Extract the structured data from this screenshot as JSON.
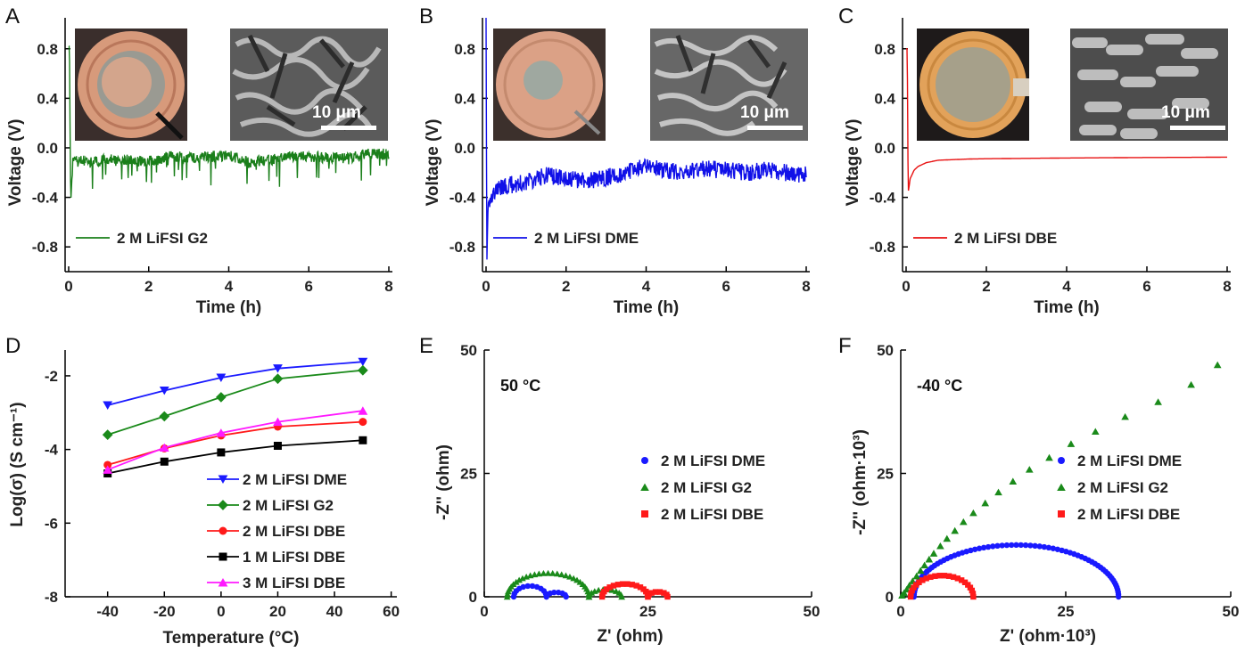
{
  "chart_data": [
    {
      "panel": "A",
      "type": "line",
      "xlabel": "Time (h)",
      "ylabel": "Voltage (V)",
      "xlim": [
        0,
        8
      ],
      "ylim": [
        -1.0,
        1.05
      ],
      "xticks": [
        "0",
        "2",
        "4",
        "6",
        "8"
      ],
      "yticks": [
        "0.8",
        "0.4",
        "0.0",
        "-0.4",
        "-0.8"
      ],
      "legend_placement": "bottom-left",
      "insets": [
        "photo",
        "micrograph"
      ],
      "scalebar_label": "10 μm",
      "series": [
        {
          "name": "2 M LiFSI G2",
          "color": "#1a7f1a",
          "x": [
            0,
            0.02,
            0.05,
            0.1,
            0.3,
            0.6,
            1,
            1.5,
            2,
            2.5,
            3,
            3.5,
            4,
            4.5,
            5,
            5.5,
            6,
            6.5,
            7,
            7.5,
            8
          ],
          "y": [
            0.82,
            0.82,
            -0.45,
            -0.12,
            -0.1,
            -0.12,
            -0.09,
            -0.1,
            -0.11,
            -0.07,
            -0.08,
            -0.07,
            -0.06,
            -0.12,
            -0.1,
            -0.07,
            -0.07,
            -0.08,
            -0.08,
            -0.05,
            -0.05
          ]
        }
      ]
    },
    {
      "panel": "B",
      "type": "line",
      "xlabel": "Time (h)",
      "ylabel": "Voltage (V)",
      "xlim": [
        0,
        8
      ],
      "ylim": [
        -1.0,
        1.05
      ],
      "xticks": [
        "0",
        "2",
        "4",
        "6",
        "8"
      ],
      "yticks": [
        "0.8",
        "0.4",
        "0.0",
        "-0.4",
        "-0.8"
      ],
      "legend_placement": "bottom-left",
      "insets": [
        "photo",
        "micrograph"
      ],
      "scalebar_label": "10 μm",
      "series": [
        {
          "name": "2 M LiFSI DME",
          "color": "#1010e8",
          "x": [
            0,
            0.02,
            0.05,
            0.1,
            0.3,
            0.6,
            1,
            1.5,
            2,
            2.5,
            3,
            3.5,
            4,
            4.5,
            5,
            5.5,
            6,
            6.5,
            7,
            7.5,
            8
          ],
          "y": [
            1.05,
            -0.95,
            -0.45,
            -0.4,
            -0.33,
            -0.3,
            -0.28,
            -0.22,
            -0.25,
            -0.27,
            -0.24,
            -0.2,
            -0.15,
            -0.18,
            -0.2,
            -0.17,
            -0.18,
            -0.2,
            -0.18,
            -0.2,
            -0.22
          ]
        }
      ]
    },
    {
      "panel": "C",
      "type": "line",
      "xlabel": "Time (h)",
      "ylabel": "Voltage (V)",
      "xlim": [
        0,
        8
      ],
      "ylim": [
        -1.0,
        1.05
      ],
      "xticks": [
        "0",
        "2",
        "4",
        "6",
        "8"
      ],
      "yticks": [
        "0.8",
        "0.4",
        "0.0",
        "-0.4",
        "-0.8"
      ],
      "legend_placement": "bottom-left",
      "insets": [
        "photo",
        "micrograph"
      ],
      "scalebar_label": "10 μm",
      "series": [
        {
          "name": "2 M LiFSI DBE",
          "color": "#e81010",
          "x": [
            0,
            0.03,
            0.05,
            0.08,
            0.1,
            0.2,
            0.3,
            0.5,
            0.8,
            1.2,
            1.6,
            2,
            3,
            4,
            5,
            6,
            7,
            8
          ],
          "y": [
            0.8,
            0.8,
            -0.36,
            -0.3,
            -0.25,
            -0.18,
            -0.15,
            -0.12,
            -0.1,
            -0.095,
            -0.09,
            -0.088,
            -0.085,
            -0.082,
            -0.08,
            -0.078,
            -0.077,
            -0.075
          ]
        }
      ]
    },
    {
      "panel": "D",
      "type": "line",
      "xlabel": "Temperature (°C)",
      "ylabel": "Log(σ) (S cm⁻¹)",
      "xlim": [
        -55,
        62
      ],
      "ylim": [
        -8,
        -1.3
      ],
      "xticks": [
        "-40",
        "-20",
        "0",
        "20",
        "40",
        "60"
      ],
      "yticks": [
        "-2",
        "-4",
        "-6",
        "-8"
      ],
      "legend_placement": "bottom-right",
      "x": [
        -40,
        -20,
        0,
        20,
        50
      ],
      "series": [
        {
          "name": "2 M LiFSI DME",
          "color": "#1a1aff",
          "marker": "triangle-down",
          "values": [
            -2.8,
            -2.4,
            -2.05,
            -1.8,
            -1.62
          ]
        },
        {
          "name": "2 M LiFSI G2",
          "color": "#1a8a1a",
          "marker": "diamond",
          "values": [
            -3.6,
            -3.1,
            -2.58,
            -2.08,
            -1.85
          ]
        },
        {
          "name": "2 M LiFSI DBE",
          "color": "#ff1a1a",
          "marker": "circle",
          "values": [
            -4.42,
            -3.97,
            -3.62,
            -3.38,
            -3.25
          ]
        },
        {
          "name": "1 M LiFSI DBE",
          "color": "#000000",
          "marker": "square",
          "values": [
            -4.65,
            -4.33,
            -4.08,
            -3.9,
            -3.75
          ]
        },
        {
          "name": "3 M LiFSI DBE",
          "color": "#ff1aff",
          "marker": "triangle-up",
          "values": [
            -4.55,
            -3.95,
            -3.55,
            -3.25,
            -2.95
          ]
        }
      ]
    },
    {
      "panel": "E",
      "type": "scatter",
      "xlabel": "Z' (ohm)",
      "ylabel": "-Z'' (ohm)",
      "xlim": [
        0,
        50
      ],
      "ylim": [
        0,
        50
      ],
      "xticks": [
        "0",
        "25",
        "50"
      ],
      "yticks": [
        "0",
        "25",
        "50"
      ],
      "annotation": "50 °C",
      "legend_placement": "right",
      "series": [
        {
          "name": "2 M LiFSI DME",
          "color": "#1a1aff",
          "marker": "circle",
          "arcs": [
            {
              "x0": 4.5,
              "x1": 9.5,
              "h": 2.2
            },
            {
              "x0": 9.5,
              "x1": 12.5,
              "h": 0.9
            }
          ]
        },
        {
          "name": "2 M LiFSI G2",
          "color": "#1a8a1a",
          "marker": "triangle-up",
          "arcs": [
            {
              "x0": 3.5,
              "x1": 16.0,
              "h": 4.8
            },
            {
              "x0": 16.0,
              "x1": 21.0,
              "h": 1.5
            }
          ]
        },
        {
          "name": "2 M LiFSI DBE",
          "color": "#ff1a1a",
          "marker": "square",
          "arcs": [
            {
              "x0": 18.0,
              "x1": 25.0,
              "h": 2.6
            },
            {
              "x0": 25.0,
              "x1": 28.0,
              "h": 1.0
            }
          ]
        }
      ]
    },
    {
      "panel": "F",
      "type": "scatter",
      "xlabel": "Z' (ohm·10³)",
      "ylabel": "-Z'' (ohm·10³)",
      "xlim": [
        0,
        50
      ],
      "ylim": [
        0,
        50
      ],
      "xticks": [
        "0",
        "25",
        "50"
      ],
      "yticks": [
        "0",
        "25",
        "50"
      ],
      "annotation": "-40 °C",
      "legend_placement": "right",
      "series": [
        {
          "name": "2 M LiFSI DME",
          "color": "#1a1aff",
          "marker": "circle",
          "arcs": [
            {
              "x0": 2.0,
              "x1": 33.0,
              "h": 10.5
            }
          ]
        },
        {
          "name": "2 M LiFSI G2",
          "color": "#1a8a1a",
          "marker": "triangle-up",
          "x": [
            0.2,
            0.5,
            0.9,
            1.3,
            1.8,
            2.4,
            3.0,
            3.6,
            4.3,
            5.0,
            6.0,
            7.0,
            8.2,
            9.5,
            11.0,
            12.8,
            14.8,
            17.0,
            19.5,
            22.5,
            25.8,
            29.5,
            34.0,
            39.0,
            44.0,
            48.0
          ],
          "y": [
            0.3,
            0.8,
            1.5,
            2.3,
            3.2,
            4.2,
            5.3,
            6.4,
            7.6,
            8.8,
            10.3,
            11.8,
            13.4,
            15.2,
            17.0,
            19.0,
            21.2,
            23.4,
            25.8,
            28.2,
            31.0,
            33.5,
            36.5,
            39.5,
            43.0,
            47.0
          ]
        },
        {
          "name": "2 M LiFSI DBE",
          "color": "#ff1a1a",
          "marker": "square",
          "arcs": [
            {
              "x0": 1.5,
              "x1": 11.0,
              "h": 4.3
            }
          ]
        }
      ]
    }
  ]
}
